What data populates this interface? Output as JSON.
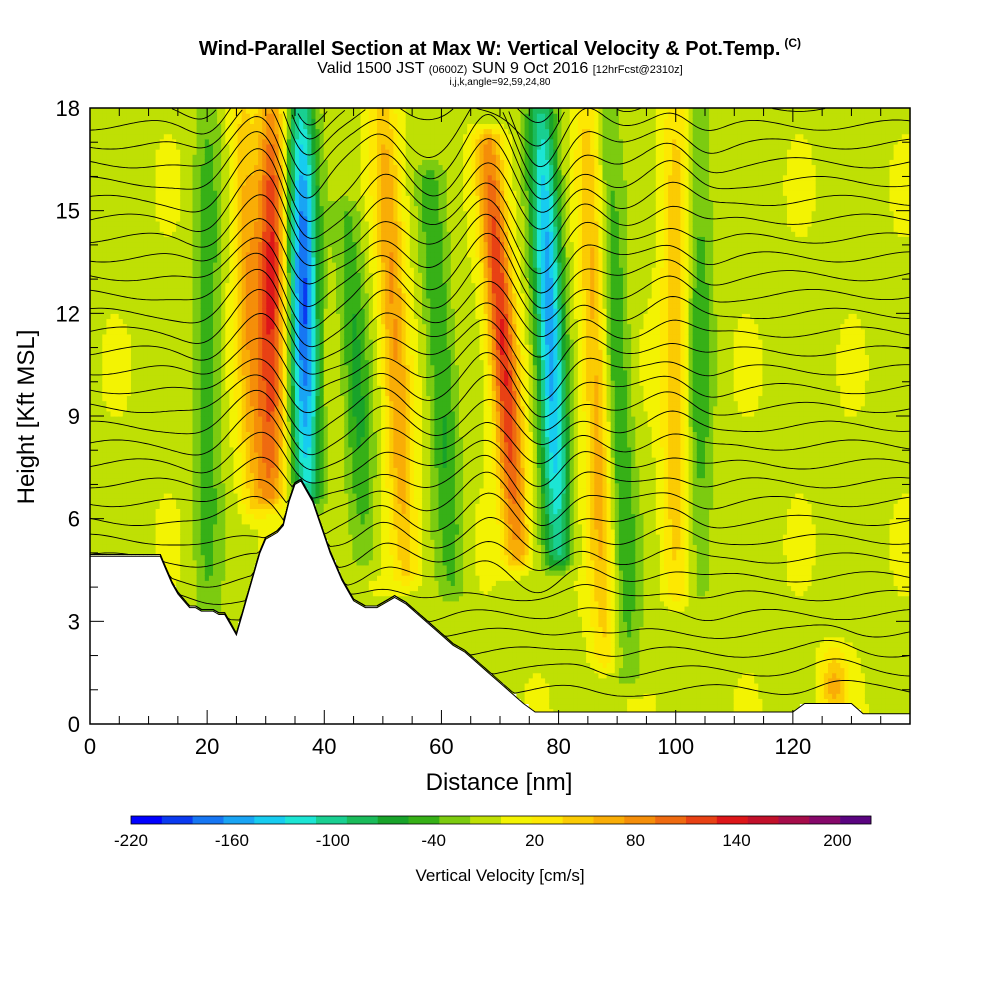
{
  "header": {
    "title": "Wind-Parallel Section at Max W: Vertical Velocity & Pot.Temp.",
    "title_mark": "(C)",
    "subtitle_a": "Valid 1500 JST",
    "subtitle_b": "(0600Z)",
    "subtitle_c": "SUN 9 Oct 2016",
    "subtitle_d": "[12hrFcst@2310z]",
    "sub2": "i,j,k,angle=92,59,24,80"
  },
  "chart_data": {
    "type": "heatmap",
    "xlabel": "Distance [nm]",
    "ylabel": "Height [Kft MSL]",
    "xlim": [
      0,
      140
    ],
    "ylim": [
      0,
      18
    ],
    "xticks": [
      0,
      20,
      40,
      60,
      80,
      100,
      120
    ],
    "yticks": [
      0,
      3,
      6,
      9,
      12,
      15,
      18
    ],
    "colorbar": {
      "label": "Vertical Velocity [cm/s]",
      "min": -220,
      "max": 220,
      "step": 20,
      "tick_values": [
        -220,
        -160,
        -100,
        -40,
        20,
        80,
        140,
        200
      ],
      "colors": [
        "#0000ff",
        "#0a3af0",
        "#1676f3",
        "#19a4f4",
        "#17ccf0",
        "#1ce5d4",
        "#19cf91",
        "#1abb5b",
        "#18a32a",
        "#36b017",
        "#7ccb10",
        "#bfe004",
        "#f3f302",
        "#fde802",
        "#fbcb03",
        "#f9ad06",
        "#f58e09",
        "#ef6a10",
        "#e84114",
        "#dd1619",
        "#c2102a",
        "#a60c4a",
        "#86086a",
        "#5a0480"
      ]
    },
    "terrain_profile_kft": {
      "x": [
        0,
        12,
        13,
        14,
        15,
        16,
        17,
        18,
        19,
        20,
        21,
        22,
        23,
        24,
        25,
        26,
        27,
        28,
        29,
        30,
        31,
        32,
        33,
        34,
        35,
        36,
        37,
        38,
        39,
        40,
        41,
        42,
        43,
        44,
        45,
        46,
        47,
        48,
        49,
        50,
        52,
        54,
        56,
        58,
        60,
        62,
        64,
        66,
        68,
        70,
        72,
        74,
        76,
        78,
        80,
        82,
        84,
        86,
        88,
        90,
        92,
        94,
        96,
        98,
        100,
        102,
        104,
        106,
        108,
        110,
        112,
        114,
        116,
        118,
        120,
        122,
        124,
        126,
        128,
        130,
        132,
        134,
        136,
        138
      ],
      "y": [
        4.9,
        4.9,
        4.5,
        4.1,
        3.8,
        3.6,
        3.4,
        3.4,
        3.3,
        3.3,
        3.3,
        3.2,
        3.2,
        2.9,
        2.6,
        3.2,
        3.8,
        4.4,
        5.0,
        5.4,
        5.5,
        5.6,
        5.8,
        6.5,
        7.0,
        7.1,
        6.8,
        6.5,
        6.0,
        5.5,
        5.0,
        4.6,
        4.2,
        3.9,
        3.6,
        3.5,
        3.4,
        3.4,
        3.4,
        3.5,
        3.7,
        3.5,
        3.2,
        2.9,
        2.6,
        2.3,
        2.1,
        1.8,
        1.5,
        1.2,
        0.9,
        0.6,
        0.35,
        0.35,
        0.35,
        0.35,
        0.35,
        0.35,
        0.35,
        0.35,
        0.35,
        0.35,
        0.35,
        0.35,
        0.35,
        0.35,
        0.35,
        0.35,
        0.35,
        0.35,
        0.35,
        0.35,
        0.35,
        0.35,
        0.35,
        0.6,
        0.6,
        0.6,
        0.6,
        0.6,
        0.3,
        0.3,
        0.3,
        0.3
      ]
    },
    "updraft_bands": [
      {
        "x_top": 31,
        "x_bottom": 31,
        "y_top": 18,
        "y_bottom": 6.8,
        "peak": 150
      },
      {
        "x_top": 50,
        "x_bottom": 54,
        "y_top": 18,
        "y_bottom": 4.5,
        "peak": 90
      },
      {
        "x_top": 68,
        "x_bottom": 73,
        "y_top": 17,
        "y_bottom": 5.0,
        "peak": 150
      },
      {
        "x_top": 85,
        "x_bottom": 88,
        "y_top": 18,
        "y_bottom": 2.0,
        "peak": 80
      },
      {
        "x_top": 26,
        "x_bottom": 28,
        "y_top": 18,
        "y_bottom": 6.5,
        "peak": 80
      },
      {
        "x_top": 100,
        "x_bottom": 100,
        "y_top": 18,
        "y_bottom": 4.0,
        "peak": 70
      },
      {
        "x_top": 127,
        "x_bottom": 127,
        "y_top": 2.0,
        "y_bottom": 0.3,
        "peak": 70
      }
    ],
    "downdraft_bands": [
      {
        "x_top": 36,
        "x_bottom": 37,
        "y_top": 18,
        "y_bottom": 6.8,
        "peak": -200
      },
      {
        "x_top": 77,
        "x_bottom": 80,
        "y_top": 18,
        "y_bottom": 5.0,
        "peak": -170
      },
      {
        "x_top": 44,
        "x_bottom": 47,
        "y_top": 15,
        "y_bottom": 5.0,
        "peak": -60
      },
      {
        "x_top": 58,
        "x_bottom": 62,
        "y_top": 16,
        "y_bottom": 4.0,
        "peak": -60
      },
      {
        "x_top": 88,
        "x_bottom": 92,
        "y_top": 18,
        "y_bottom": 1.5,
        "peak": -60
      },
      {
        "x_top": 104,
        "x_bottom": 104,
        "y_top": 18,
        "y_bottom": 4.0,
        "peak": -50
      },
      {
        "x_top": 20,
        "x_bottom": 20,
        "y_top": 18,
        "y_bottom": 3.5,
        "peak": -50
      }
    ]
  }
}
